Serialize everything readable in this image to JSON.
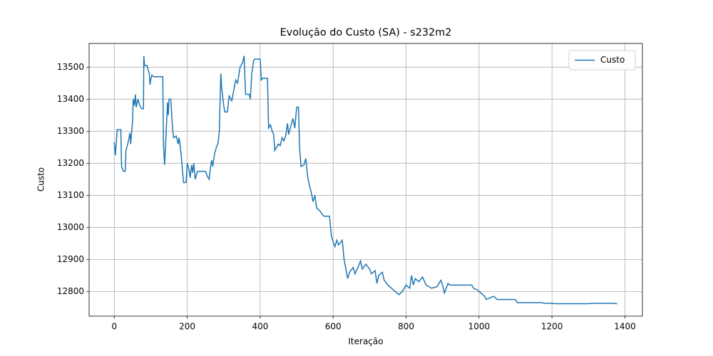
{
  "chart_data": {
    "type": "line",
    "title": "Evolução do Custo (SA) - s232m2",
    "x_label": "Iteração",
    "y_label": "Custo",
    "xlim": [
      -68.95,
      1447.95
    ],
    "xticks": [
      0,
      200,
      400,
      600,
      800,
      1000,
      1200,
      1400
    ],
    "ylim": [
      12723,
      13574
    ],
    "yticks": [
      12800,
      12900,
      13000,
      13100,
      13200,
      13300,
      13400,
      13500
    ],
    "grid": true,
    "legend": "upper right",
    "x": [
      0,
      3,
      8,
      18,
      20,
      25,
      30,
      32,
      38,
      43,
      45,
      50,
      52,
      55,
      58,
      60,
      65,
      70,
      75,
      80,
      81,
      83,
      90,
      93,
      96,
      98,
      100,
      103,
      108,
      133,
      135,
      138,
      140,
      146,
      148,
      150,
      155,
      160,
      163,
      170,
      175,
      178,
      183,
      190,
      197,
      200,
      205,
      208,
      212,
      215,
      218,
      222,
      228,
      250,
      255,
      260,
      263,
      267,
      270,
      275,
      280,
      285,
      288,
      292,
      295,
      300,
      303,
      310,
      315,
      322,
      328,
      333,
      338,
      345,
      352,
      356,
      360,
      370,
      373,
      377,
      382,
      385,
      400,
      403,
      407,
      420,
      423,
      428,
      433,
      437,
      440,
      445,
      450,
      455,
      460,
      465,
      470,
      475,
      478,
      485,
      490,
      495,
      500,
      505,
      508,
      512,
      520,
      525,
      530,
      535,
      540,
      545,
      550,
      555,
      565,
      570,
      575,
      590,
      595,
      600,
      605,
      610,
      615,
      625,
      630,
      635,
      640,
      645,
      655,
      660,
      670,
      675,
      680,
      690,
      700,
      705,
      715,
      720,
      725,
      735,
      740,
      750,
      760,
      770,
      780,
      790,
      800,
      810,
      815,
      820,
      825,
      835,
      845,
      855,
      870,
      885,
      895,
      900,
      905,
      915,
      920,
      980,
      985,
      995,
      1005,
      1015,
      1020,
      1040,
      1050,
      1100,
      1105,
      1170,
      1180,
      1200,
      1210,
      1300,
      1310,
      1360,
      1379
    ],
    "series": [
      {
        "name": "Custo",
        "color": "#1f77b4",
        "values": [
          13265,
          13225,
          13305,
          13305,
          13190,
          13175,
          13175,
          13240,
          13265,
          13295,
          13260,
          13330,
          13400,
          13380,
          13415,
          13375,
          13400,
          13380,
          13370,
          13370,
          13535,
          13505,
          13505,
          13490,
          13480,
          13445,
          13460,
          13475,
          13470,
          13470,
          13255,
          13195,
          13240,
          13390,
          13350,
          13400,
          13400,
          13305,
          13280,
          13285,
          13260,
          13280,
          13230,
          13140,
          13140,
          13200,
          13180,
          13155,
          13195,
          13170,
          13200,
          13150,
          13175,
          13175,
          13160,
          13150,
          13180,
          13210,
          13190,
          13230,
          13250,
          13265,
          13300,
          13480,
          13430,
          13380,
          13360,
          13360,
          13410,
          13395,
          13430,
          13460,
          13450,
          13500,
          13515,
          13535,
          13415,
          13415,
          13400,
          13480,
          13520,
          13525,
          13525,
          13460,
          13465,
          13465,
          13310,
          13320,
          13300,
          13290,
          13240,
          13250,
          13260,
          13255,
          13280,
          13270,
          13285,
          13325,
          13290,
          13320,
          13340,
          13310,
          13375,
          13375,
          13250,
          13190,
          13195,
          13215,
          13160,
          13130,
          13110,
          13080,
          13100,
          13060,
          13050,
          13040,
          13035,
          13035,
          12975,
          12955,
          12940,
          12960,
          12945,
          12960,
          12900,
          12870,
          12840,
          12860,
          12875,
          12855,
          12880,
          12895,
          12870,
          12885,
          12870,
          12855,
          12865,
          12825,
          12850,
          12860,
          12835,
          12820,
          12810,
          12800,
          12790,
          12800,
          12820,
          12810,
          12850,
          12820,
          12840,
          12830,
          12845,
          12820,
          12810,
          12815,
          12835,
          12820,
          12795,
          12825,
          12820,
          12820,
          12810,
          12805,
          12795,
          12785,
          12775,
          12785,
          12775,
          12775,
          12765,
          12765,
          12763,
          12763,
          12762,
          12762,
          12763,
          12763,
          12762
        ]
      }
    ]
  }
}
